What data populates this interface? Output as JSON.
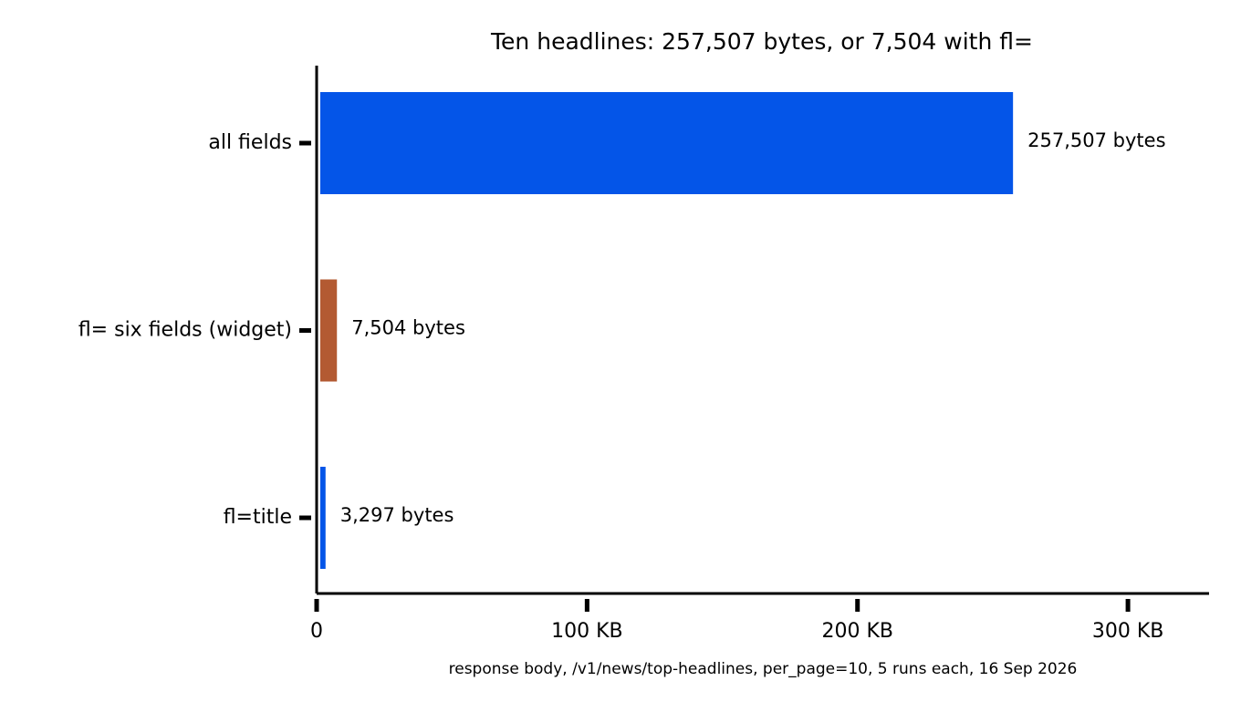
{
  "chart_data": {
    "type": "barh",
    "title": "Ten headlines: 257,507 bytes, or 7,504 with fl=",
    "xlabel": "response body, /v1/news/top-headlines, per_page=10, 5 runs each, 16 Sep 2026",
    "categories": [
      "all fields",
      "fl= six fields (widget)",
      "fl=title"
    ],
    "values": [
      257507,
      7504,
      3297
    ],
    "value_labels": [
      "257,507 bytes",
      "7,504 bytes",
      "3,297 bytes"
    ],
    "colors": [
      "#0455e8",
      "#b35a32",
      "#0455e8"
    ],
    "xlim": [
      0,
      330000
    ],
    "xticks": [
      0,
      {
        "value": 100000,
        "label": "100 KB"
      },
      {
        "value": 200000,
        "label": "200 KB"
      },
      {
        "value": 300000,
        "label": "300 KB"
      }
    ],
    "grid": false
  }
}
